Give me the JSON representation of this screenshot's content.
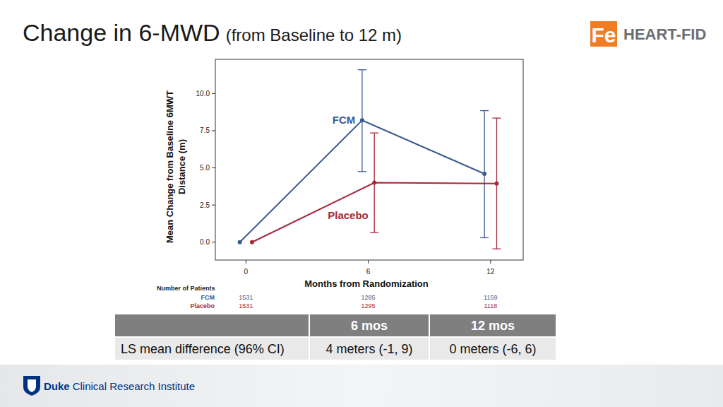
{
  "header": {
    "title": "Change in 6-MWD",
    "subtitle": "(from Baseline to 12 m)",
    "logo_mark": "Fe",
    "logo_text": "HEART-FID"
  },
  "chart_data": {
    "type": "line",
    "x_label": "Months from Randomization",
    "y_label": [
      "Mean Change from Baseline 6MWT",
      "Distance (m)"
    ],
    "xlim": [
      -1.5,
      13.6
    ],
    "xticks": [
      0,
      6,
      12
    ],
    "ylim": [
      -1.2,
      12.3
    ],
    "yticks": [
      {
        "value": 0,
        "label": "0.0"
      },
      {
        "value": 2.5,
        "label": "2.5"
      },
      {
        "value": 5,
        "label": "5.0"
      },
      {
        "value": 7.5,
        "label": "7.5"
      },
      {
        "value": 10,
        "label": "10.0"
      }
    ],
    "grid": false,
    "series": [
      {
        "name": "FCM",
        "color": "#3b5b8e",
        "marker": "circle",
        "line_style": "solid",
        "x": [
          -0.3,
          5.7,
          11.7
        ],
        "values": [
          0,
          8.2,
          4.6
        ],
        "lower": [
          null,
          4.75,
          0.3
        ],
        "upper": [
          null,
          11.6,
          8.85
        ]
      },
      {
        "name": "Placebo",
        "color": "#a8293b",
        "marker": "circle",
        "line_style": "solid",
        "x": [
          0.3,
          6.3,
          12.3
        ],
        "values": [
          0,
          4.0,
          3.95
        ],
        "lower": [
          null,
          0.65,
          -0.45
        ],
        "upper": [
          null,
          7.35,
          8.35
        ]
      }
    ],
    "number_of_patients": {
      "label": "Number of Patients",
      "x": [
        0,
        6,
        12
      ],
      "rows": [
        {
          "name": "FCM",
          "color": "#3b5b8e",
          "values": [
            1531,
            1285,
            1159
          ]
        },
        {
          "name": "Placebo",
          "color": "#a8293b",
          "values": [
            1531,
            1295,
            1118
          ]
        }
      ]
    }
  },
  "table": {
    "header": [
      "",
      "6 mos",
      "12 mos"
    ],
    "rows": [
      [
        "LS mean difference (96% CI)",
        "4 meters (-1, 9)",
        "0 meters (-6, 6)"
      ]
    ]
  },
  "footer": {
    "brand_bold": "Duke",
    "brand_rest": "Clinical Research Institute"
  }
}
